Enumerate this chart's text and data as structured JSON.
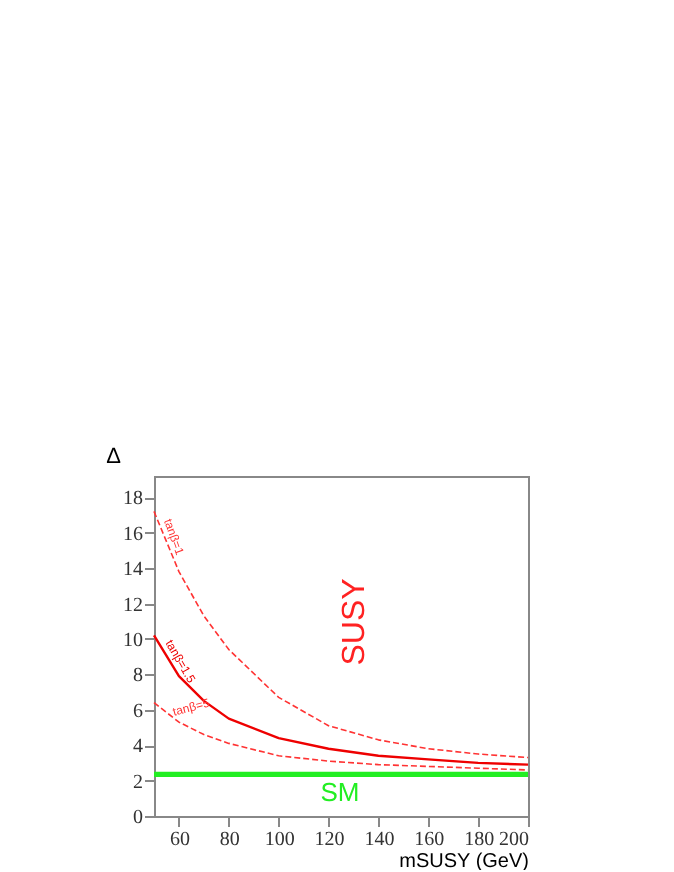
{
  "chart_data": {
    "type": "line",
    "xlabel": "mSUSY (GeV)",
    "ylabel": "Δ",
    "x": [
      50,
      60,
      70,
      80,
      100,
      120,
      140,
      160,
      180,
      200
    ],
    "series": [
      {
        "name": "tanβ=1",
        "color": "#ff3333",
        "line_style": "dashed",
        "values": [
          17.2,
          13.8,
          11.3,
          9.4,
          6.7,
          5.1,
          4.3,
          3.8,
          3.5,
          3.3
        ]
      },
      {
        "name": "tanβ=1.5",
        "color": "#ee0000",
        "line_style": "solid",
        "values": [
          10.2,
          7.9,
          6.5,
          5.5,
          4.4,
          3.8,
          3.4,
          3.2,
          3.0,
          2.9
        ]
      },
      {
        "name": "tanβ=5",
        "color": "#ff3333",
        "line_style": "dashed",
        "values": [
          6.4,
          5.3,
          4.6,
          4.1,
          3.4,
          3.1,
          2.9,
          2.8,
          2.7,
          2.6
        ]
      }
    ],
    "bands": [
      {
        "axis": "y",
        "from": 2.2,
        "to": 2.5,
        "label": "SM",
        "color": "#22ee22"
      }
    ],
    "annotations": [
      "SUSY"
    ],
    "xlim": [
      50,
      200
    ],
    "ylim": [
      0,
      19.2
    ],
    "xticks": [
      60,
      80,
      100,
      120,
      140,
      160,
      180,
      200
    ],
    "yticks": [
      0,
      2,
      4,
      6,
      8,
      10,
      12,
      14,
      16,
      18
    ],
    "grid": false,
    "marker": "none"
  }
}
